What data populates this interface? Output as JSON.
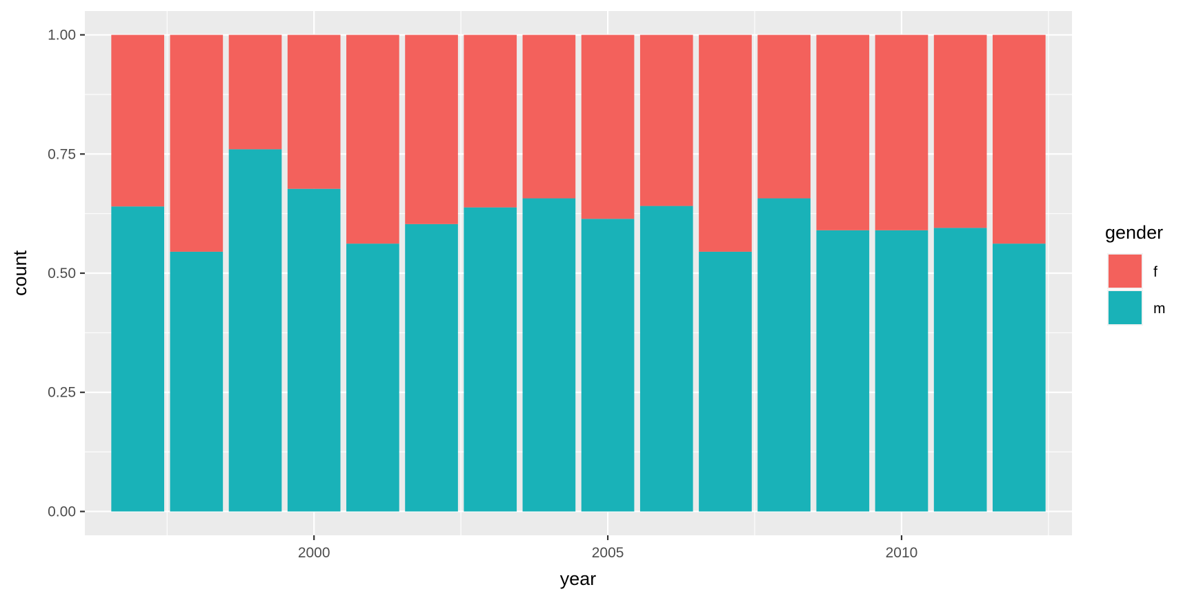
{
  "chart_data": {
    "type": "bar",
    "stacked": true,
    "position": "fill",
    "title": "",
    "xlabel": "year",
    "ylabel": "count",
    "x": [
      1997,
      1998,
      1999,
      2000,
      2001,
      2002,
      2003,
      2004,
      2005,
      2006,
      2007,
      2008,
      2009,
      2010,
      2011,
      2012
    ],
    "xlim": [
      1996.1,
      2012.9
    ],
    "ylim": [
      -0.05,
      1.05
    ],
    "x_ticks": [
      2000,
      2005,
      2010
    ],
    "x_tick_labels": [
      "2000",
      "2005",
      "2010"
    ],
    "y_ticks": [
      0,
      0.25,
      0.5,
      0.75,
      1.0
    ],
    "y_tick_labels": [
      "0.00",
      "0.25",
      "0.50",
      "0.75",
      "1.00"
    ],
    "series": [
      {
        "name": "m",
        "color": "#19B2B8",
        "values": [
          0.64,
          0.545,
          0.76,
          0.677,
          0.562,
          0.603,
          0.638,
          0.657,
          0.614,
          0.641,
          0.545,
          0.657,
          0.59,
          0.59,
          0.595,
          0.562
        ]
      },
      {
        "name": "f",
        "color": "#F3615C",
        "values": [
          0.36,
          0.455,
          0.24,
          0.323,
          0.438,
          0.397,
          0.362,
          0.343,
          0.386,
          0.359,
          0.455,
          0.343,
          0.41,
          0.41,
          0.405,
          0.438
        ]
      }
    ],
    "grid": true,
    "legend": {
      "title": "gender",
      "placement": "right",
      "entries": [
        {
          "label": "f",
          "color": "#F3615C"
        },
        {
          "label": "m",
          "color": "#19B2B8"
        }
      ]
    }
  }
}
